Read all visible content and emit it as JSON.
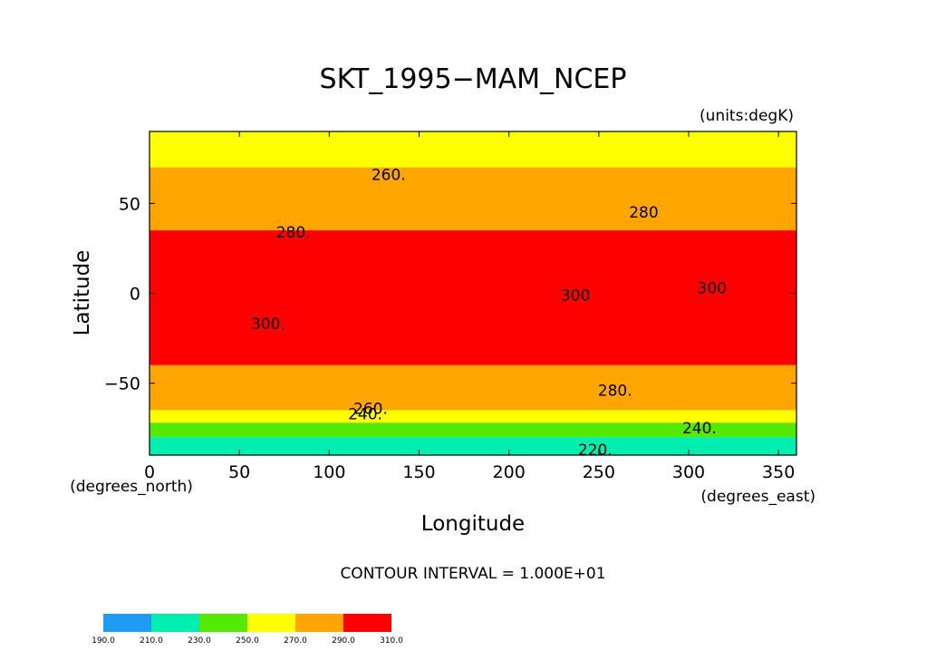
{
  "chart_data": {
    "type": "heatmap",
    "title": "SKT_1995−MAM_NCEP",
    "units_label": "(units:degK)",
    "xlabel": "Longitude",
    "ylabel": "Latitude",
    "x_unit_label": "(degrees_east)",
    "y_unit_label": "(degrees_north)",
    "xlim": [
      0,
      360
    ],
    "ylim": [
      -90,
      90
    ],
    "x_ticks": [
      0,
      50,
      100,
      150,
      200,
      250,
      300,
      350
    ],
    "y_ticks": [
      -50,
      0,
      50
    ],
    "x_tick_labels": [
      "0",
      "50",
      "100",
      "150",
      "200",
      "250",
      "300",
      "350"
    ],
    "y_tick_labels": [
      "−50",
      "0",
      "50"
    ],
    "contour_interval_text": "CONTOUR INTERVAL = 1.000E+01",
    "contour_labels": [
      {
        "text": "260.",
        "lon": 133,
        "lat": 63
      },
      {
        "text": "280.",
        "lon": 80,
        "lat": 31
      },
      {
        "text": "280",
        "lon": 275,
        "lat": 42
      },
      {
        "text": "300.",
        "lon": 66,
        "lat": -20
      },
      {
        "text": "300",
        "lon": 237,
        "lat": -4
      },
      {
        "text": "300",
        "lon": 313,
        "lat": 0
      },
      {
        "text": "280.",
        "lon": 259,
        "lat": -57
      },
      {
        "text": "260.",
        "lon": 123,
        "lat": -67
      },
      {
        "text": "240.",
        "lon": 120,
        "lat": -70
      },
      {
        "text": "240.",
        "lon": 306,
        "lat": -78
      },
      {
        "text": "220.",
        "lon": 248,
        "lat": -90
      }
    ],
    "bands": [
      {
        "lat_range": [
          70,
          90
        ],
        "value_range": [
          250,
          270
        ]
      },
      {
        "lat_range": [
          35,
          70
        ],
        "value_range": [
          270,
          290
        ]
      },
      {
        "lat_range": [
          -40,
          35
        ],
        "value_range": [
          290,
          310
        ]
      },
      {
        "lat_range": [
          -65,
          -40
        ],
        "value_range": [
          270,
          290
        ]
      },
      {
        "lat_range": [
          -72,
          -65
        ],
        "value_range": [
          250,
          270
        ]
      },
      {
        "lat_range": [
          -80,
          -72
        ],
        "value_range": [
          230,
          250
        ]
      },
      {
        "lat_range": [
          -90,
          -80
        ],
        "value_range": [
          210,
          230
        ]
      }
    ],
    "colorbar": {
      "levels": [
        "190.0",
        "210.0",
        "230.0",
        "250.0",
        "270.0",
        "290.0",
        "310.0"
      ],
      "colors": [
        "#1e9cf5",
        "#00eeb0",
        "#55e800",
        "#ffff00",
        "#ffa500",
        "#ff0000"
      ]
    }
  }
}
